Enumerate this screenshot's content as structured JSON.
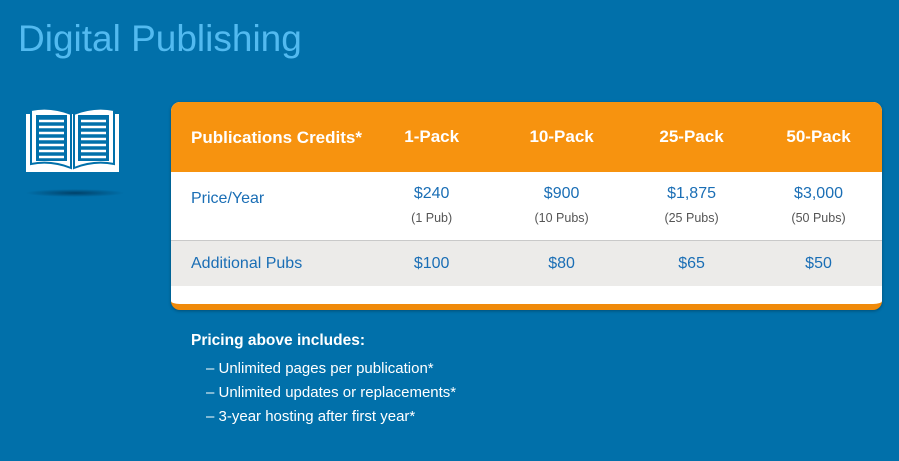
{
  "title": "Digital Publishing",
  "icon": "open-book-icon",
  "colors": {
    "background": "#0170aa",
    "title": "#52baf0",
    "header": "#f7930f",
    "text_blue": "#1a6eb5"
  },
  "table": {
    "headers": [
      "Publications Credits*",
      "1-Pack",
      "10-Pack",
      "25-Pack",
      "50-Pack"
    ],
    "rows": [
      {
        "label": "Price/Year",
        "cells": [
          {
            "price": "$240",
            "note": "(1 Pub)"
          },
          {
            "price": "$900",
            "note": "(10 Pubs)"
          },
          {
            "price": "$1,875",
            "note": "(25 Pubs)"
          },
          {
            "price": "$3,000",
            "note": "(50 Pubs)"
          }
        ]
      },
      {
        "label": "Additional Pubs",
        "cells": [
          {
            "price": "$100"
          },
          {
            "price": "$80"
          },
          {
            "price": "$65"
          },
          {
            "price": "$50"
          }
        ]
      }
    ]
  },
  "notes": {
    "heading": "Pricing above includes:",
    "items": [
      "– Unlimited pages per publication*",
      "– Unlimited updates or replacements*",
      "– 3-year hosting after first year*"
    ]
  }
}
